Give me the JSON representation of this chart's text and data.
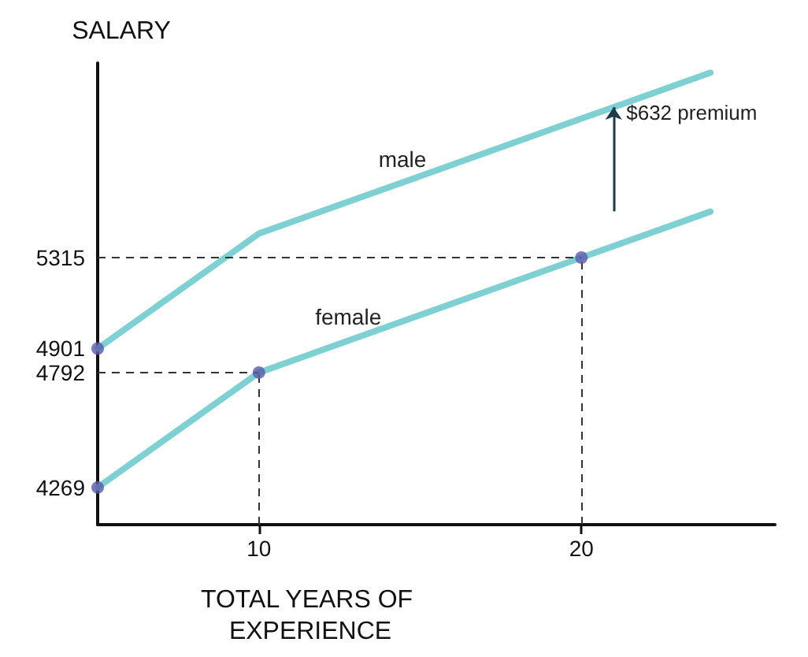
{
  "chart_data": {
    "type": "line",
    "ylabel": "SALARY",
    "xlabel": "TOTAL YEARS OF EXPERIENCE",
    "xlim": [
      5,
      26
    ],
    "xticks": [
      10,
      20
    ],
    "ylim": [
      4100,
      6200
    ],
    "yticks": [
      4269,
      4792,
      4901,
      5315
    ],
    "grid": false,
    "legend": false,
    "marker": "none",
    "line_style": "solid",
    "series": [
      {
        "name": "male",
        "color": "#7fd0d3",
        "x": [
          5,
          10,
          20,
          24
        ],
        "values": [
          4901,
          5424,
          5947,
          6156
        ]
      },
      {
        "name": "female",
        "color": "#7fd0d3",
        "x": [
          5,
          10,
          20,
          24
        ],
        "values": [
          4269,
          4792,
          5315,
          5524
        ]
      },
      {
        "type": "scatter",
        "marker": "circle",
        "color": "#5a5aa8",
        "x": [
          5,
          10,
          20,
          5
        ],
        "values": [
          4269,
          4792,
          5315,
          4901
        ]
      }
    ],
    "ref_lines": [
      {
        "axis": "y",
        "value": 4792,
        "line_style": "dashed",
        "color": "#333333"
      },
      {
        "axis": "y",
        "value": 5315,
        "line_style": "dashed",
        "color": "#333333"
      },
      {
        "axis": "x",
        "value": 10,
        "line_style": "dashed",
        "color": "#333333"
      },
      {
        "axis": "x",
        "value": 20,
        "line_style": "dashed",
        "color": "#333333"
      }
    ],
    "annotations": [
      {
        "text": "$632 premium",
        "x": 21,
        "y": 5999
      }
    ]
  }
}
